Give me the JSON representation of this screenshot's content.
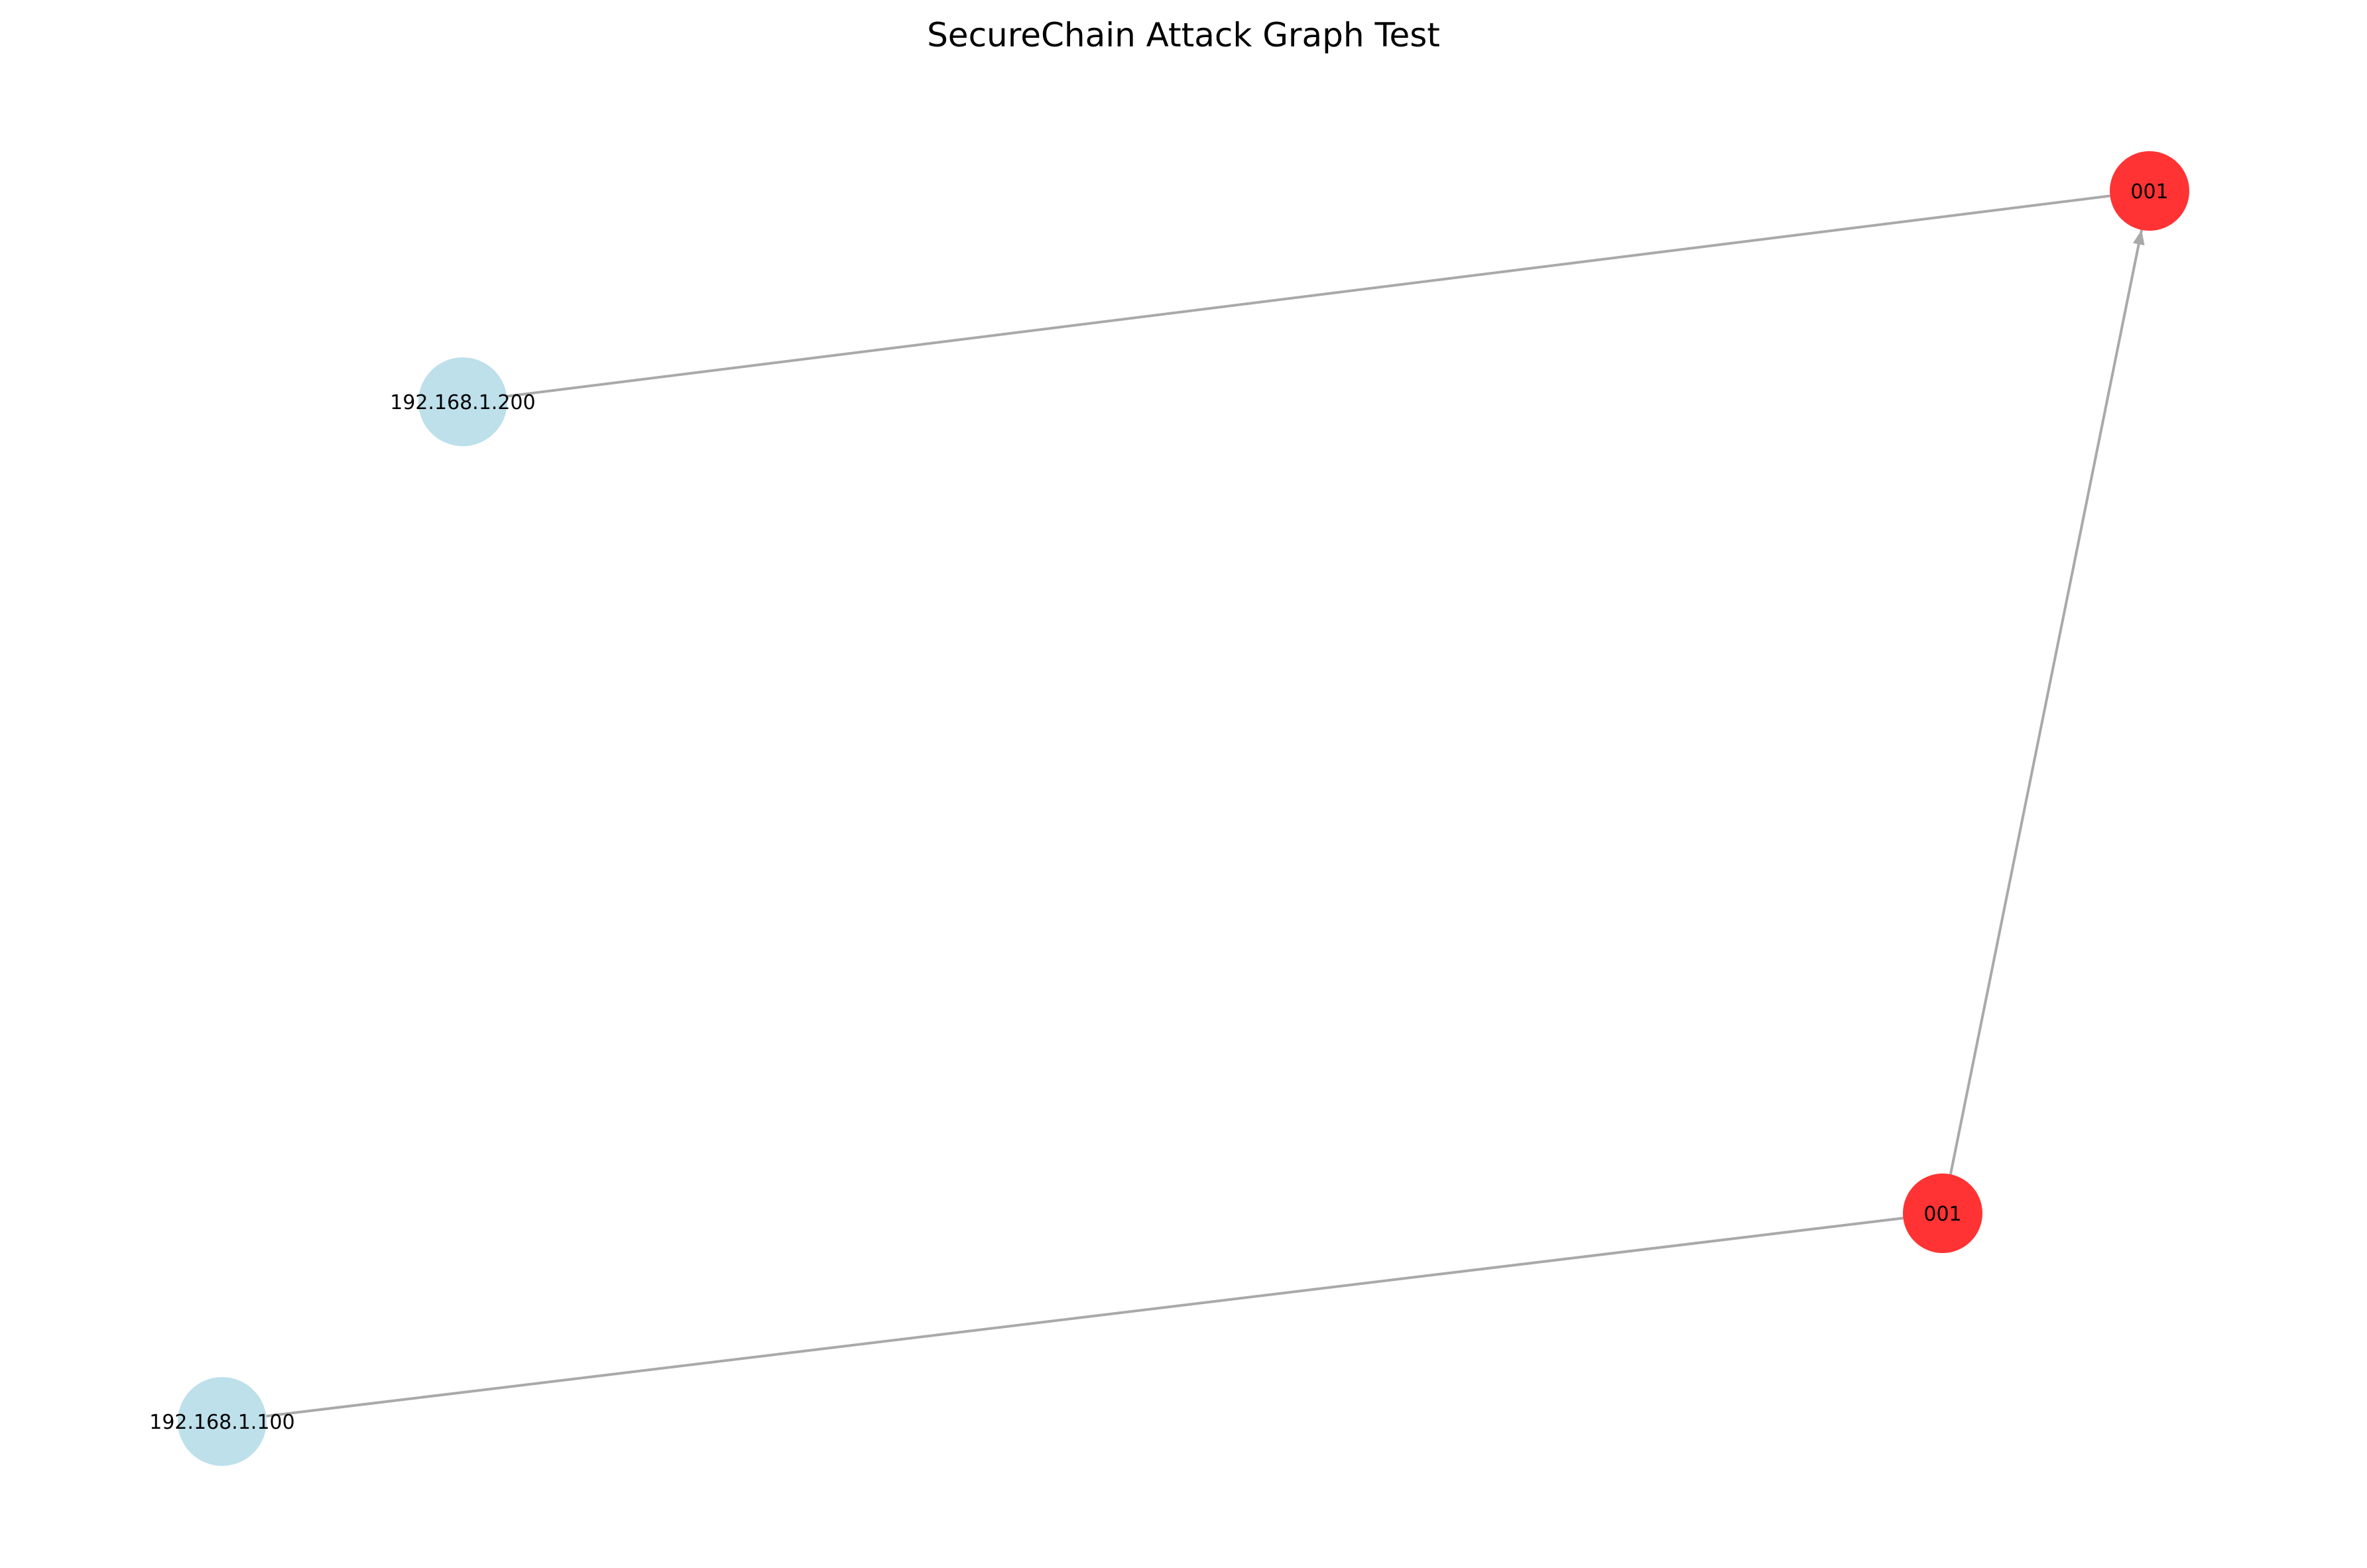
{
  "title": "SecureChain Attack Graph Test",
  "colors": {
    "host_node": "#add8e6",
    "attack_node": "#ff0000",
    "edge": "#a9a9a9"
  },
  "nodes": [
    {
      "id": "host-200",
      "label": "192.168.1.200",
      "kind": "host"
    },
    {
      "id": "host-100",
      "label": "192.168.1.100",
      "kind": "host"
    },
    {
      "id": "attack-top",
      "label": "001",
      "kind": "attack"
    },
    {
      "id": "attack-bottom",
      "label": "001",
      "kind": "attack"
    }
  ],
  "edges": [
    {
      "from": "host-200",
      "to": "attack-top"
    },
    {
      "from": "host-100",
      "to": "attack-bottom"
    },
    {
      "from": "attack-bottom",
      "to": "attack-top",
      "arrow": true
    }
  ]
}
